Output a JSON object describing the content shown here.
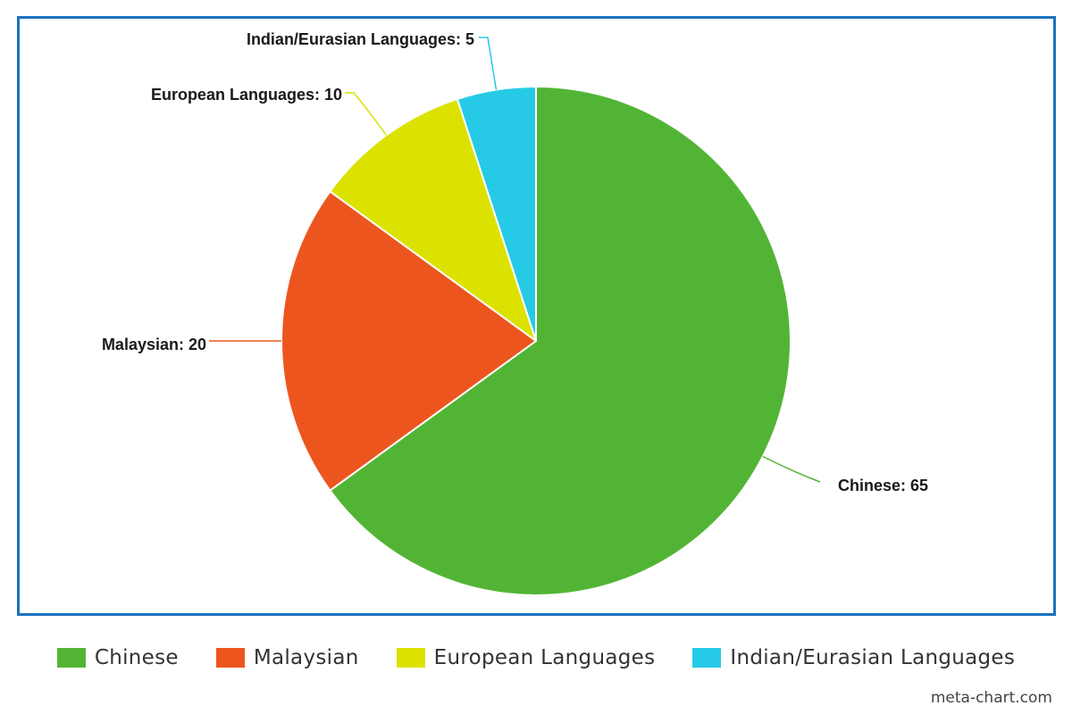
{
  "chart_data": {
    "type": "pie",
    "slices": [
      {
        "label": "Chinese",
        "value": 65,
        "color": "#52b435",
        "data_label": "Chinese: 65"
      },
      {
        "label": "Malaysian",
        "value": 20,
        "color": "#ec561e",
        "data_label": "Malaysian: 20"
      },
      {
        "label": "European Languages",
        "value": 10,
        "color": "#dbe200",
        "data_label": "European Languages: 10"
      },
      {
        "label": "Indian/Eurasian Languages",
        "value": 5,
        "color": "#26cae6",
        "data_label": "Indian/Eurasian Languages: 5"
      }
    ],
    "legend_placement": "bottom",
    "title": ""
  },
  "watermark": "meta-chart.com"
}
